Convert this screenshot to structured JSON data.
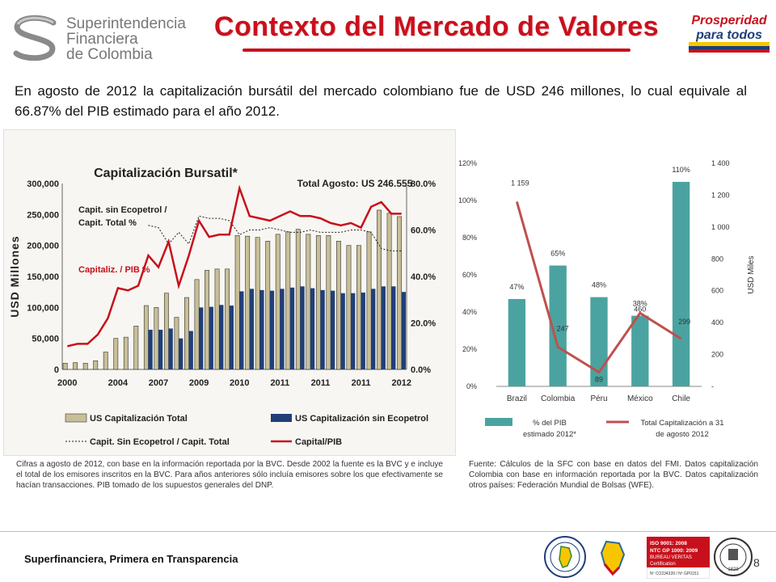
{
  "header": {
    "org_name_lines": [
      "Superintendencia",
      "Financiera",
      "de Colombia"
    ],
    "title": "Contexto del Mercado de Valores",
    "brand_lines": [
      "Prosperidad",
      "para todos"
    ],
    "brand_colors": [
      "#c8101c",
      "#1f3d7a",
      "#f7c600"
    ]
  },
  "intro": "En agosto de 2012 la capitalización bursátil del mercado colombiano fue de USD 246 millones, lo cual equivale al 66.87% del PIB estimado para el año 2012.",
  "colors": {
    "title_red": "#c8101c",
    "bar_tan": "#c8bf98",
    "bar_navy": "#203f79",
    "line_red": "#c8101c",
    "teal": "#4aa3a0",
    "rose_line": "#c0504d"
  },
  "notes": {
    "left": "Cifras a agosto de 2012, con base  en la información reportada por la BVC. Desde 2002 la fuente es la BVC y e incluye el total de los emisores inscritos en la BVC. Para años anteriores sólo incluía emisores sobre los que efectivamente se hacían transacciones. PIB tomado de los supuestos generales del DNP.",
    "right": "Fuente: Cálculos de la SFC con base en datos del FMI. Datos capitalización Colombia con base en información reportada por la BVC.  Datos capitalización otros países: Federación Mundial de Bolsas (WFE)."
  },
  "footer": {
    "text": "Superfinanciera, Primera en Transparencia",
    "page": "8",
    "cert_lines": [
      "ISO 9001: 2008",
      "NTC GP 1000: 2009",
      "BUREAU VERITAS",
      "Certification"
    ],
    "cert_numbers": "Nº CO234339 / Nº GP0151",
    "bv_year": "1828"
  },
  "chart_data": [
    {
      "type": "bar",
      "title": "Capitalización Bursatil*",
      "annotation_total": "Total Agosto: US 246.555",
      "annotation_ratio": [
        "Capit. sin Ecopetrol /",
        "Capit. Total %"
      ],
      "annotation_pib": "Capitaliz. / PIB %",
      "ylabel": "USD Millones",
      "ylim": [
        0,
        300000
      ],
      "y2lim": [
        0,
        0.8
      ],
      "y_ticks": [
        "0",
        "50,000",
        "100,000",
        "150,000",
        "200,000",
        "250,000",
        "300,000"
      ],
      "y2_ticks": [
        "0.0%",
        "20.0%",
        "40.0%",
        "60.0%",
        "80.0%"
      ],
      "x_tick_labels": [
        "2000",
        "2004",
        "2007",
        "2009",
        "2010",
        "2011",
        "2011",
        "2011",
        "2012"
      ],
      "legend": [
        "US Capitalización Total",
        "US Capitalización sin Ecopetrol",
        "Capit. Sin Ecopetrol / Capit. Total",
        "Capital/PIB"
      ],
      "series": [
        {
          "name": "US Capitalización Total",
          "kind": "bar",
          "values": [
            10000,
            11000,
            10000,
            14000,
            28000,
            50000,
            52000,
            70000,
            103000,
            100000,
            123000,
            84000,
            116000,
            145000,
            160000,
            162000,
            162000,
            216000,
            215000,
            213000,
            207000,
            218000,
            222000,
            226000,
            218000,
            216000,
            216000,
            207000,
            200000,
            200000,
            222000,
            257000,
            252000,
            246555
          ]
        },
        {
          "name": "US Capitalización sin Ecopetrol",
          "kind": "bar",
          "values": [
            null,
            null,
            null,
            null,
            null,
            null,
            null,
            null,
            64000,
            64000,
            66000,
            50000,
            62000,
            100000,
            101000,
            104000,
            103000,
            126000,
            130000,
            128000,
            127000,
            130000,
            132000,
            134000,
            131000,
            128000,
            127000,
            123000,
            123000,
            124000,
            130000,
            134000,
            134000,
            125000
          ]
        },
        {
          "name": "Capit. Sin Ecopetrol / Capit. Total",
          "kind": "line",
          "axis": "y2",
          "values": [
            null,
            null,
            null,
            null,
            null,
            null,
            null,
            null,
            0.62,
            0.61,
            0.54,
            0.59,
            0.54,
            0.66,
            0.65,
            0.65,
            0.64,
            0.58,
            0.6,
            0.6,
            0.61,
            0.6,
            0.59,
            0.59,
            0.6,
            0.59,
            0.59,
            0.59,
            0.6,
            0.6,
            0.59,
            0.52,
            0.51,
            0.51
          ]
        },
        {
          "name": "Capital/PIB",
          "kind": "line",
          "axis": "y2",
          "values": [
            0.1,
            0.11,
            0.11,
            0.15,
            0.22,
            0.35,
            0.34,
            0.36,
            0.49,
            0.44,
            0.55,
            0.36,
            0.49,
            0.64,
            0.57,
            0.58,
            0.58,
            0.78,
            0.66,
            0.65,
            0.64,
            0.66,
            0.68,
            0.66,
            0.66,
            0.65,
            0.63,
            0.62,
            0.63,
            0.61,
            0.7,
            0.72,
            0.67,
            0.67
          ]
        }
      ]
    },
    {
      "type": "bar",
      "categories": [
        "Brazil",
        "Colombia",
        "Péru",
        "México",
        "Chile"
      ],
      "ylim": [
        0,
        1.2
      ],
      "y2lim": [
        0,
        1400
      ],
      "y_ticks": [
        "0%",
        "20%",
        "40%",
        "60%",
        "80%",
        "100%",
        "120%"
      ],
      "y2_ticks": [
        "-",
        "200",
        "400",
        "600",
        "800",
        "1 000",
        "1 200",
        "1 400"
      ],
      "y2label": "USD Miles",
      "series": [
        {
          "name": "% del PIB estimado 2012*",
          "kind": "bar",
          "values": [
            0.47,
            0.65,
            0.48,
            0.38,
            1.1
          ],
          "labels": [
            "47%",
            "65%",
            "48%",
            "38%",
            "110%"
          ]
        },
        {
          "name": "Total Capitalización  a 31 de agosto 2012",
          "kind": "line",
          "axis": "y2",
          "values": [
            1159,
            247,
            89,
            460,
            299
          ],
          "labels": [
            "1 159",
            "247",
            "89",
            "460",
            "299"
          ]
        }
      ],
      "legend": [
        [
          "% del PIB",
          "estimado 2012*"
        ],
        [
          "Total Capitalización  a 31",
          "de agosto 2012"
        ]
      ]
    }
  ]
}
